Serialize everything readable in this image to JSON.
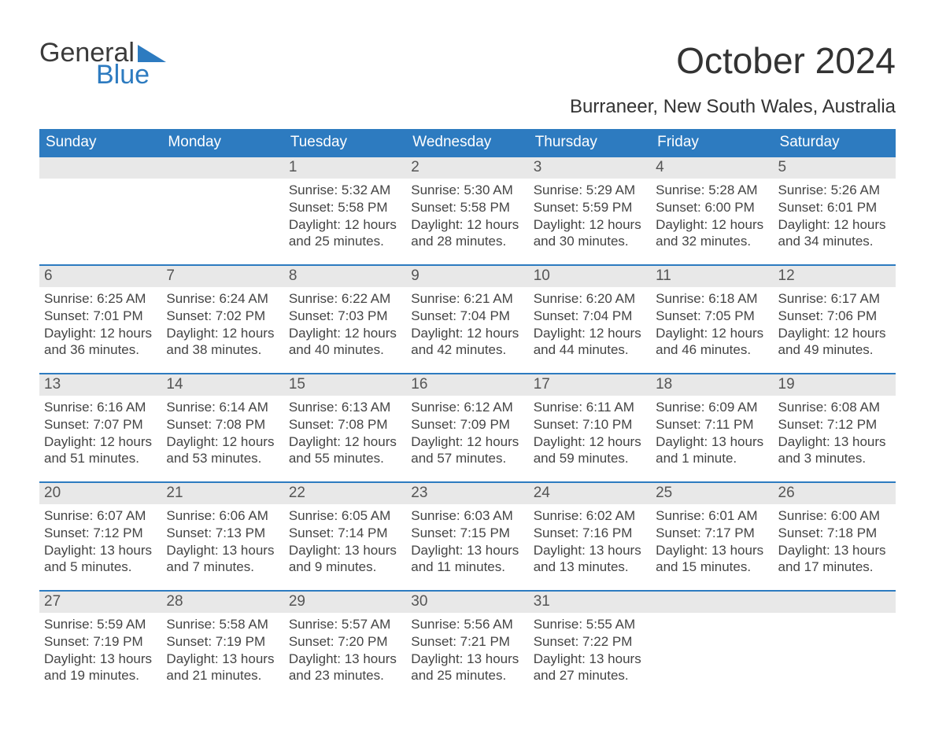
{
  "logo": {
    "word1": "General",
    "word2": "Blue",
    "text_color": "#3a3a3a",
    "accent_color": "#2d7bc0"
  },
  "title": "October 2024",
  "location": "Burraneer, New South Wales, Australia",
  "colors": {
    "header_bg": "#2d7bc0",
    "header_text": "#ffffff",
    "daynum_bg": "#e8e8e8",
    "row_border": "#2d7bc0",
    "body_text": "#444444"
  },
  "day_headers": [
    "Sunday",
    "Monday",
    "Tuesday",
    "Wednesday",
    "Thursday",
    "Friday",
    "Saturday"
  ],
  "weeks": [
    [
      {
        "n": "",
        "sunrise": "",
        "sunset": "",
        "daylight": ""
      },
      {
        "n": "",
        "sunrise": "",
        "sunset": "",
        "daylight": ""
      },
      {
        "n": "1",
        "sunrise": "Sunrise: 5:32 AM",
        "sunset": "Sunset: 5:58 PM",
        "daylight": "Daylight: 12 hours and 25 minutes."
      },
      {
        "n": "2",
        "sunrise": "Sunrise: 5:30 AM",
        "sunset": "Sunset: 5:58 PM",
        "daylight": "Daylight: 12 hours and 28 minutes."
      },
      {
        "n": "3",
        "sunrise": "Sunrise: 5:29 AM",
        "sunset": "Sunset: 5:59 PM",
        "daylight": "Daylight: 12 hours and 30 minutes."
      },
      {
        "n": "4",
        "sunrise": "Sunrise: 5:28 AM",
        "sunset": "Sunset: 6:00 PM",
        "daylight": "Daylight: 12 hours and 32 minutes."
      },
      {
        "n": "5",
        "sunrise": "Sunrise: 5:26 AM",
        "sunset": "Sunset: 6:01 PM",
        "daylight": "Daylight: 12 hours and 34 minutes."
      }
    ],
    [
      {
        "n": "6",
        "sunrise": "Sunrise: 6:25 AM",
        "sunset": "Sunset: 7:01 PM",
        "daylight": "Daylight: 12 hours and 36 minutes."
      },
      {
        "n": "7",
        "sunrise": "Sunrise: 6:24 AM",
        "sunset": "Sunset: 7:02 PM",
        "daylight": "Daylight: 12 hours and 38 minutes."
      },
      {
        "n": "8",
        "sunrise": "Sunrise: 6:22 AM",
        "sunset": "Sunset: 7:03 PM",
        "daylight": "Daylight: 12 hours and 40 minutes."
      },
      {
        "n": "9",
        "sunrise": "Sunrise: 6:21 AM",
        "sunset": "Sunset: 7:04 PM",
        "daylight": "Daylight: 12 hours and 42 minutes."
      },
      {
        "n": "10",
        "sunrise": "Sunrise: 6:20 AM",
        "sunset": "Sunset: 7:04 PM",
        "daylight": "Daylight: 12 hours and 44 minutes."
      },
      {
        "n": "11",
        "sunrise": "Sunrise: 6:18 AM",
        "sunset": "Sunset: 7:05 PM",
        "daylight": "Daylight: 12 hours and 46 minutes."
      },
      {
        "n": "12",
        "sunrise": "Sunrise: 6:17 AM",
        "sunset": "Sunset: 7:06 PM",
        "daylight": "Daylight: 12 hours and 49 minutes."
      }
    ],
    [
      {
        "n": "13",
        "sunrise": "Sunrise: 6:16 AM",
        "sunset": "Sunset: 7:07 PM",
        "daylight": "Daylight: 12 hours and 51 minutes."
      },
      {
        "n": "14",
        "sunrise": "Sunrise: 6:14 AM",
        "sunset": "Sunset: 7:08 PM",
        "daylight": "Daylight: 12 hours and 53 minutes."
      },
      {
        "n": "15",
        "sunrise": "Sunrise: 6:13 AM",
        "sunset": "Sunset: 7:08 PM",
        "daylight": "Daylight: 12 hours and 55 minutes."
      },
      {
        "n": "16",
        "sunrise": "Sunrise: 6:12 AM",
        "sunset": "Sunset: 7:09 PM",
        "daylight": "Daylight: 12 hours and 57 minutes."
      },
      {
        "n": "17",
        "sunrise": "Sunrise: 6:11 AM",
        "sunset": "Sunset: 7:10 PM",
        "daylight": "Daylight: 12 hours and 59 minutes."
      },
      {
        "n": "18",
        "sunrise": "Sunrise: 6:09 AM",
        "sunset": "Sunset: 7:11 PM",
        "daylight": "Daylight: 13 hours and 1 minute."
      },
      {
        "n": "19",
        "sunrise": "Sunrise: 6:08 AM",
        "sunset": "Sunset: 7:12 PM",
        "daylight": "Daylight: 13 hours and 3 minutes."
      }
    ],
    [
      {
        "n": "20",
        "sunrise": "Sunrise: 6:07 AM",
        "sunset": "Sunset: 7:12 PM",
        "daylight": "Daylight: 13 hours and 5 minutes."
      },
      {
        "n": "21",
        "sunrise": "Sunrise: 6:06 AM",
        "sunset": "Sunset: 7:13 PM",
        "daylight": "Daylight: 13 hours and 7 minutes."
      },
      {
        "n": "22",
        "sunrise": "Sunrise: 6:05 AM",
        "sunset": "Sunset: 7:14 PM",
        "daylight": "Daylight: 13 hours and 9 minutes."
      },
      {
        "n": "23",
        "sunrise": "Sunrise: 6:03 AM",
        "sunset": "Sunset: 7:15 PM",
        "daylight": "Daylight: 13 hours and 11 minutes."
      },
      {
        "n": "24",
        "sunrise": "Sunrise: 6:02 AM",
        "sunset": "Sunset: 7:16 PM",
        "daylight": "Daylight: 13 hours and 13 minutes."
      },
      {
        "n": "25",
        "sunrise": "Sunrise: 6:01 AM",
        "sunset": "Sunset: 7:17 PM",
        "daylight": "Daylight: 13 hours and 15 minutes."
      },
      {
        "n": "26",
        "sunrise": "Sunrise: 6:00 AM",
        "sunset": "Sunset: 7:18 PM",
        "daylight": "Daylight: 13 hours and 17 minutes."
      }
    ],
    [
      {
        "n": "27",
        "sunrise": "Sunrise: 5:59 AM",
        "sunset": "Sunset: 7:19 PM",
        "daylight": "Daylight: 13 hours and 19 minutes."
      },
      {
        "n": "28",
        "sunrise": "Sunrise: 5:58 AM",
        "sunset": "Sunset: 7:19 PM",
        "daylight": "Daylight: 13 hours and 21 minutes."
      },
      {
        "n": "29",
        "sunrise": "Sunrise: 5:57 AM",
        "sunset": "Sunset: 7:20 PM",
        "daylight": "Daylight: 13 hours and 23 minutes."
      },
      {
        "n": "30",
        "sunrise": "Sunrise: 5:56 AM",
        "sunset": "Sunset: 7:21 PM",
        "daylight": "Daylight: 13 hours and 25 minutes."
      },
      {
        "n": "31",
        "sunrise": "Sunrise: 5:55 AM",
        "sunset": "Sunset: 7:22 PM",
        "daylight": "Daylight: 13 hours and 27 minutes."
      },
      {
        "n": "",
        "sunrise": "",
        "sunset": "",
        "daylight": ""
      },
      {
        "n": "",
        "sunrise": "",
        "sunset": "",
        "daylight": ""
      }
    ]
  ]
}
